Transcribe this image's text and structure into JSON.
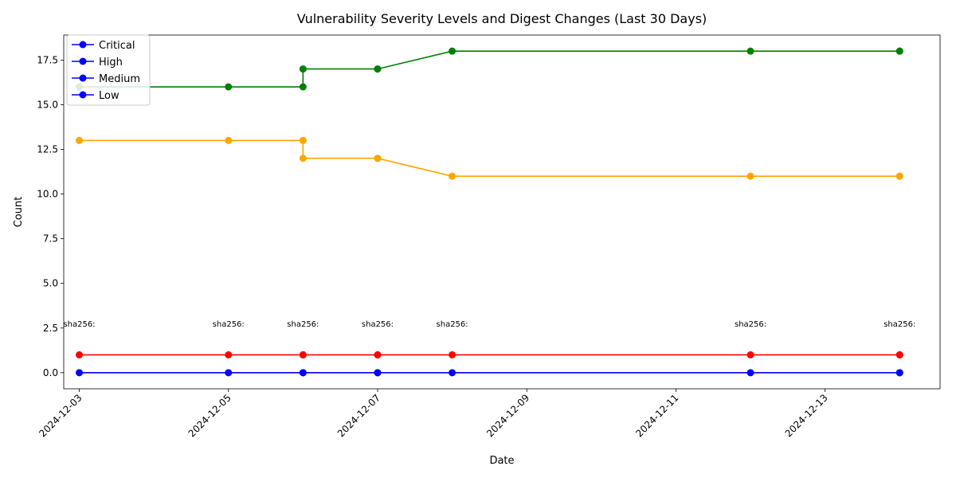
{
  "chart_data": {
    "type": "line",
    "title": "Vulnerability Severity Levels and Digest Changes (Last 30 Days)",
    "xlabel": "Date",
    "ylabel": "Count",
    "x": [
      "2024-12-03",
      "2024-12-05",
      "2024-12-06",
      "2024-12-06",
      "2024-12-07",
      "2024-12-07",
      "2024-12-08",
      "2024-12-12",
      "2024-12-14",
      "2024-12-14"
    ],
    "xlim": [
      "2024-12-02T19:00",
      "2024-12-14T13:00"
    ],
    "ylim": [
      -0.9,
      18.9
    ],
    "xticks": [
      "2024-12-03",
      "2024-12-05",
      "2024-12-07",
      "2024-12-09",
      "2024-12-11",
      "2024-12-13"
    ],
    "yticks": [
      "0.0",
      "2.5",
      "5.0",
      "7.5",
      "10.0",
      "12.5",
      "15.0",
      "17.5"
    ],
    "ytick_values": [
      0,
      2.5,
      5,
      7.5,
      10,
      12.5,
      15,
      17.5
    ],
    "series": [
      {
        "name": "Critical",
        "color": "#0000ff",
        "values": [
          0,
          0,
          0,
          0,
          0,
          0,
          0,
          0,
          0,
          0
        ]
      },
      {
        "name": "High",
        "color": "#ff0000",
        "values": [
          1,
          1,
          1,
          1,
          1,
          1,
          1,
          1,
          1,
          1
        ]
      },
      {
        "name": "Medium",
        "color": "#ffa500",
        "values": [
          13,
          13,
          13,
          12,
          12,
          12,
          11,
          11,
          11,
          11
        ]
      },
      {
        "name": "Low",
        "color": "#008000",
        "values": [
          16,
          16,
          16,
          17,
          17,
          17,
          18,
          18,
          18,
          18
        ]
      }
    ],
    "legend": {
      "placement": "upper-left",
      "marker_color": "#0000ff",
      "entries": [
        "Critical",
        "High",
        "Medium",
        "Low"
      ]
    },
    "annotations": {
      "y": 2.5,
      "items": [
        {
          "x": "2024-12-03",
          "text": "sha256:"
        },
        {
          "x": "2024-12-05",
          "text": "sha256:"
        },
        {
          "x": "2024-12-06",
          "text": "sha256:"
        },
        {
          "x": "2024-12-07",
          "text": "sha256:"
        },
        {
          "x": "2024-12-08",
          "text": "sha256:"
        },
        {
          "x": "2024-12-12",
          "text": "sha256:"
        },
        {
          "x": "2024-12-14",
          "text": "sha256:"
        }
      ]
    },
    "grid": false
  }
}
